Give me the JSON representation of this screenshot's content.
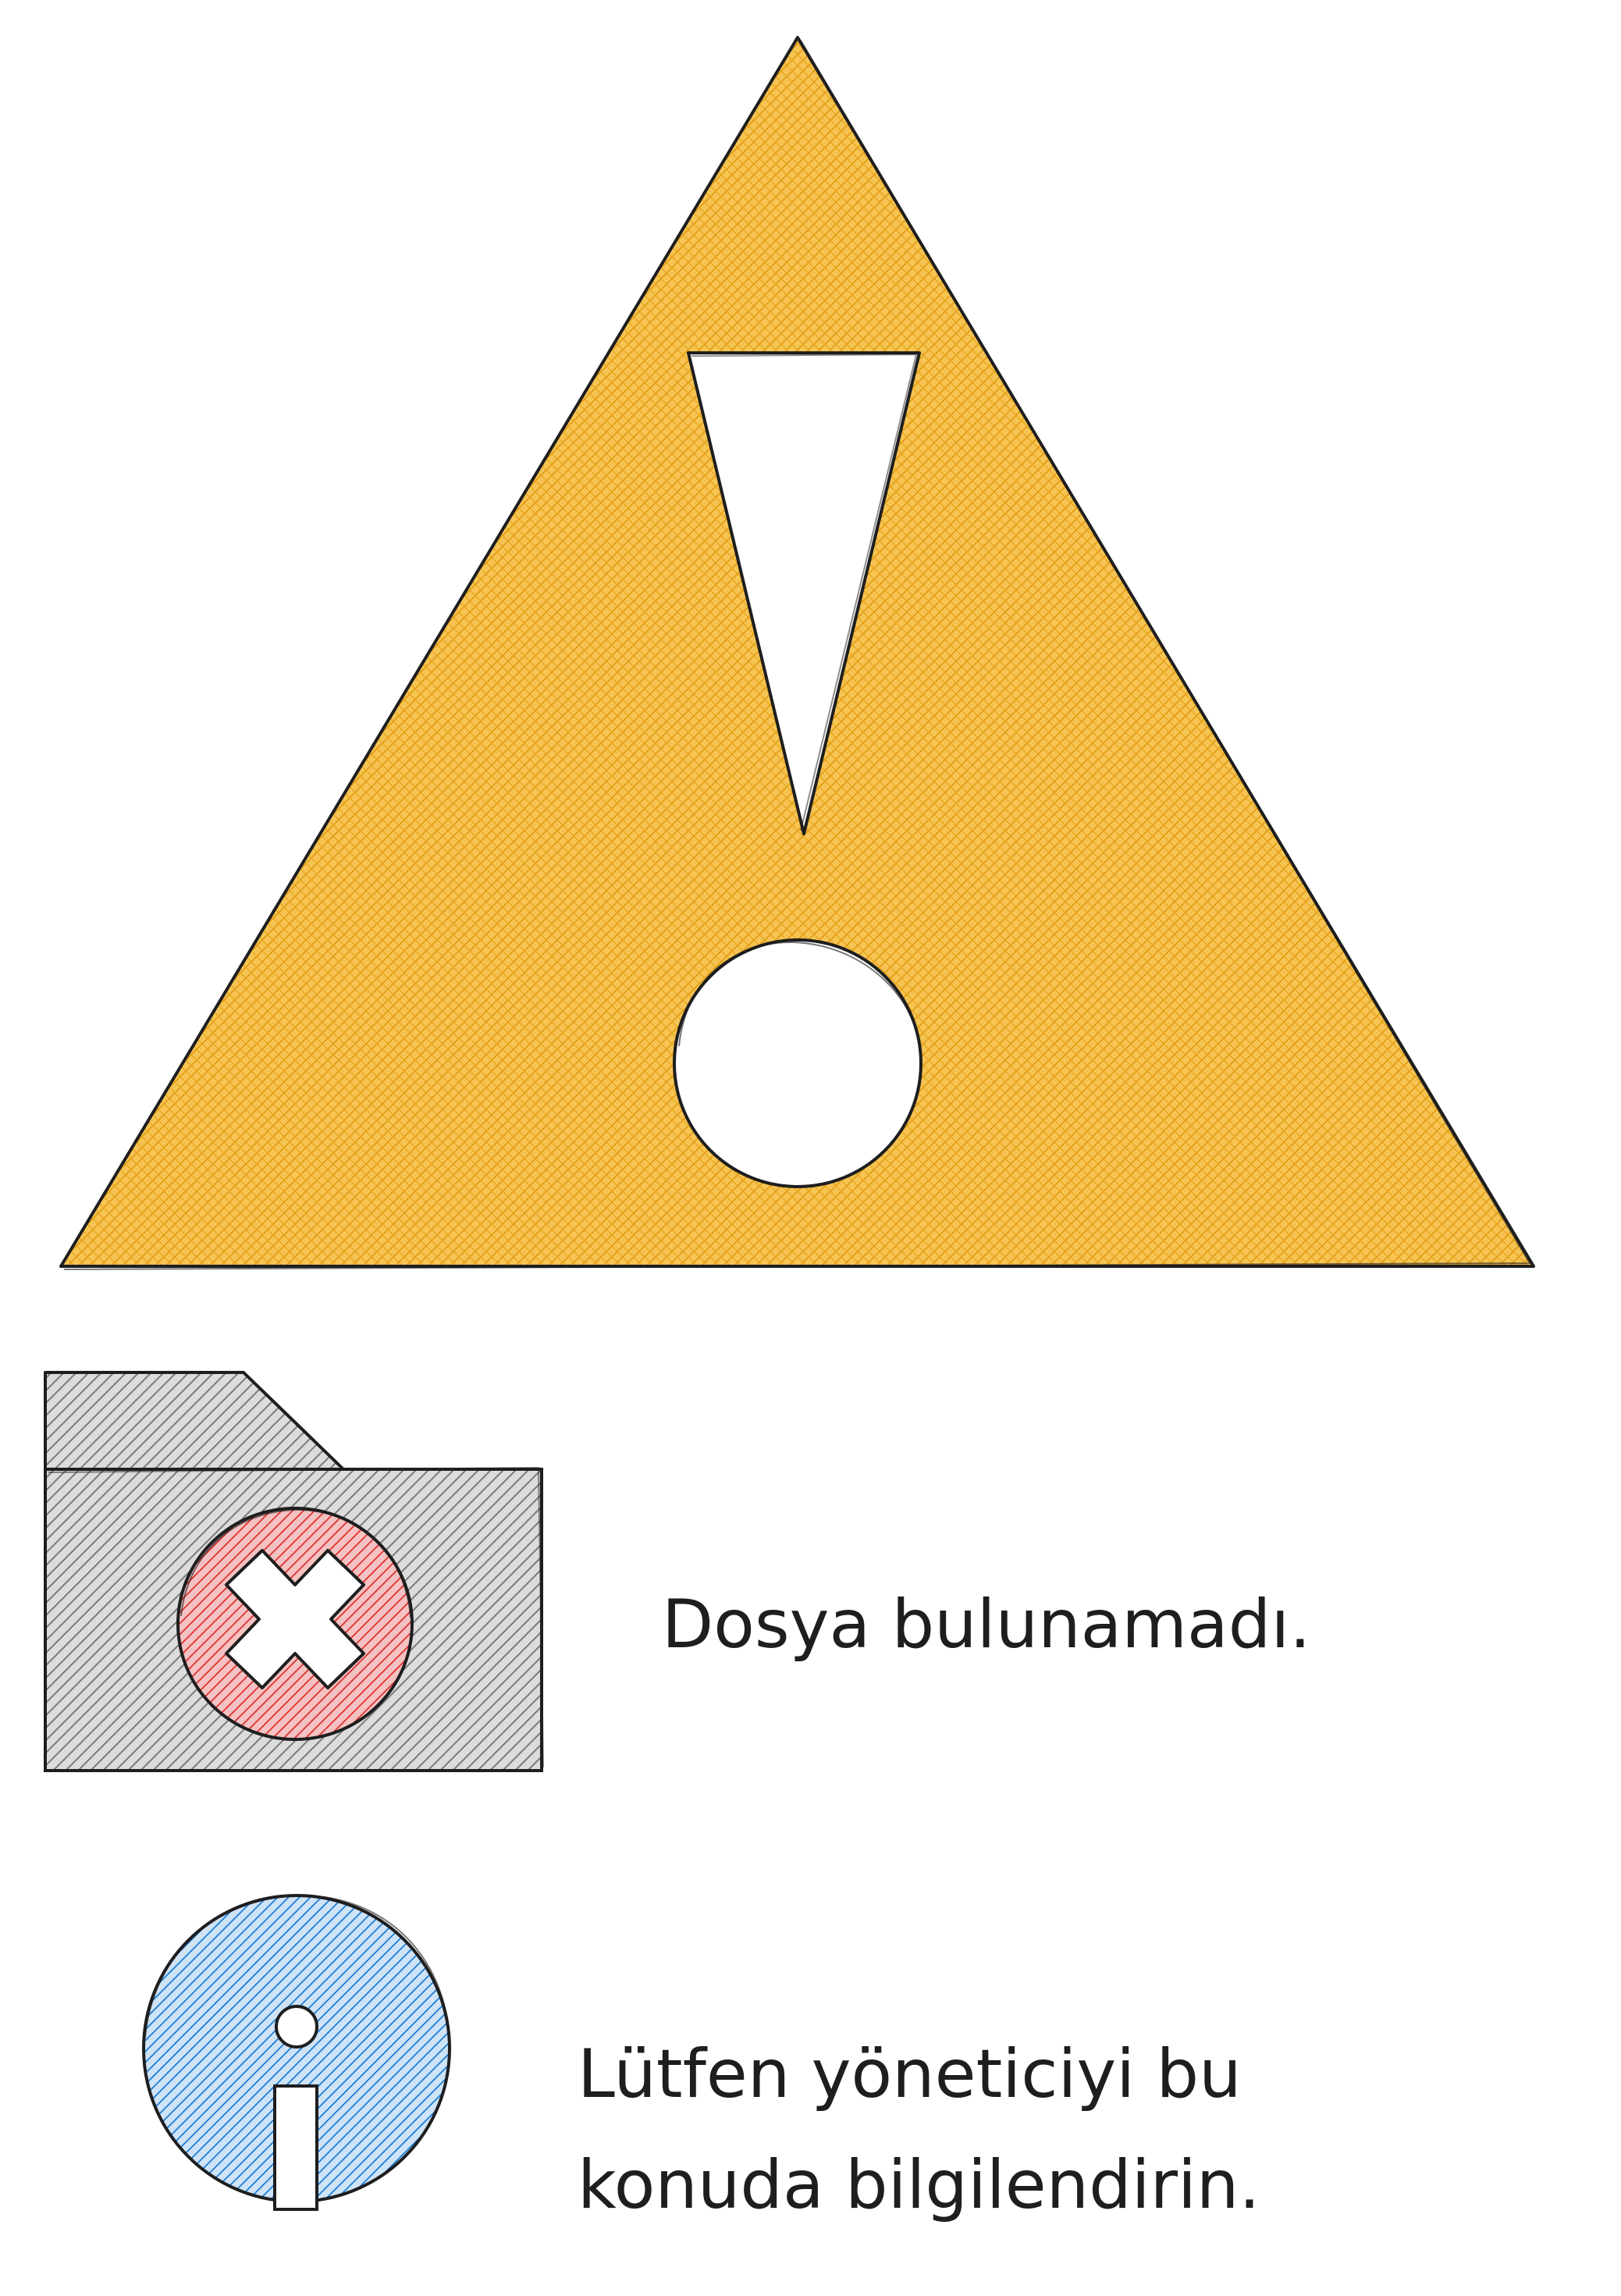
{
  "colors": {
    "warning_fill": "#f0b429",
    "warning_hatch": "#e8a317",
    "stroke": "#1e1e1e",
    "folder_hatch": "#8a8a8a",
    "error_hatch": "#e03131",
    "info_hatch": "#1c7ed6",
    "text": "#1e1e1e",
    "background": "#ffffff"
  },
  "warning": {
    "icon": "warning-triangle-icon"
  },
  "error_row": {
    "icon": "folder-error-icon",
    "message": "Dosya bulunamadı."
  },
  "info_row": {
    "icon": "info-icon",
    "message_line1": "Lütfen yöneticiyi bu",
    "message_line2": "konuda bilgilendirin."
  }
}
